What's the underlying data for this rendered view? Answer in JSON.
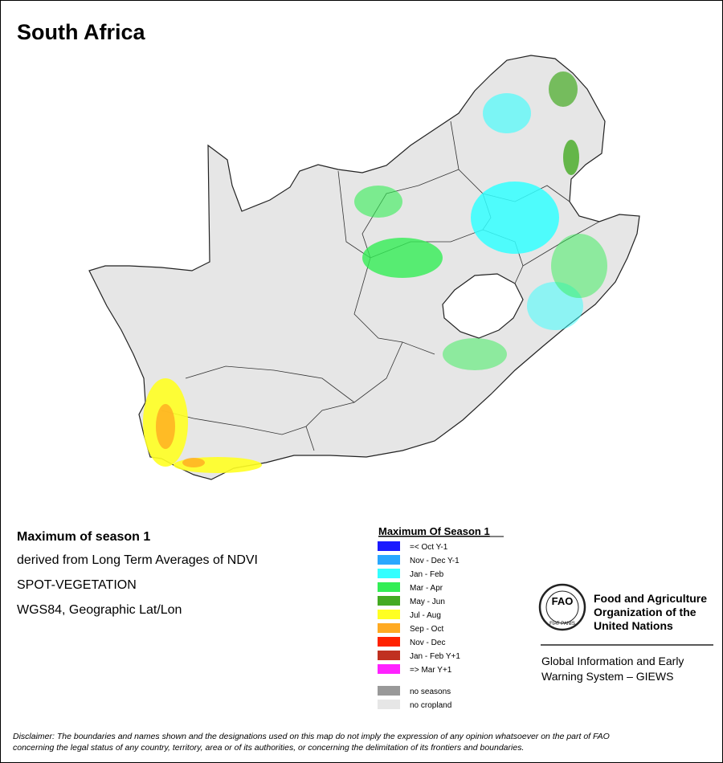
{
  "title": "South Africa",
  "description": {
    "heading": "Maximum of season 1",
    "lines": [
      "derived from Long Term Averages of NDVI",
      "SPOT-VEGETATION",
      "WGS84, Geographic Lat/Lon"
    ]
  },
  "legend": {
    "title": "Maximum Of Season 1",
    "items": [
      {
        "label": "=< Oct Y-1",
        "color": "#1a1aff"
      },
      {
        "label": "Nov - Dec Y-1",
        "color": "#2aa8ff"
      },
      {
        "label": "Jan - Feb",
        "color": "#33ffff"
      },
      {
        "label": "Mar - Apr",
        "color": "#33ee55"
      },
      {
        "label": "May - Jun",
        "color": "#44aa22"
      },
      {
        "label": "Jul - Aug",
        "color": "#ffff22"
      },
      {
        "label": "Sep - Oct",
        "color": "#ffaa22"
      },
      {
        "label": "Nov - Dec",
        "color": "#ff2200"
      },
      {
        "label": "Jan - Feb Y+1",
        "color": "#c03020"
      },
      {
        "label": "=> Mar Y+1",
        "color": "#ff22ff"
      }
    ],
    "extra": [
      {
        "label": "no seasons",
        "color": "#999999"
      },
      {
        "label": "no cropland",
        "color": "#e6e6e6"
      }
    ]
  },
  "fao": {
    "logo_letters": "FAO",
    "motto": "FIAT PANIS",
    "name_lines": [
      "Food and Agriculture",
      "Organization of the",
      "United Nations"
    ],
    "system_lines": [
      "Global Information and Early",
      "Warning System – GIEWS"
    ]
  },
  "disclaimer": [
    "Disclaimer: The boundaries and names shown and the designations used on this map do not imply the expression of any opinion whatsoever on the part of FAO",
    "concerning the legal status of any country, territory, area or of its authorities, or concerning the delimitation of its frontiers and boundaries."
  ]
}
